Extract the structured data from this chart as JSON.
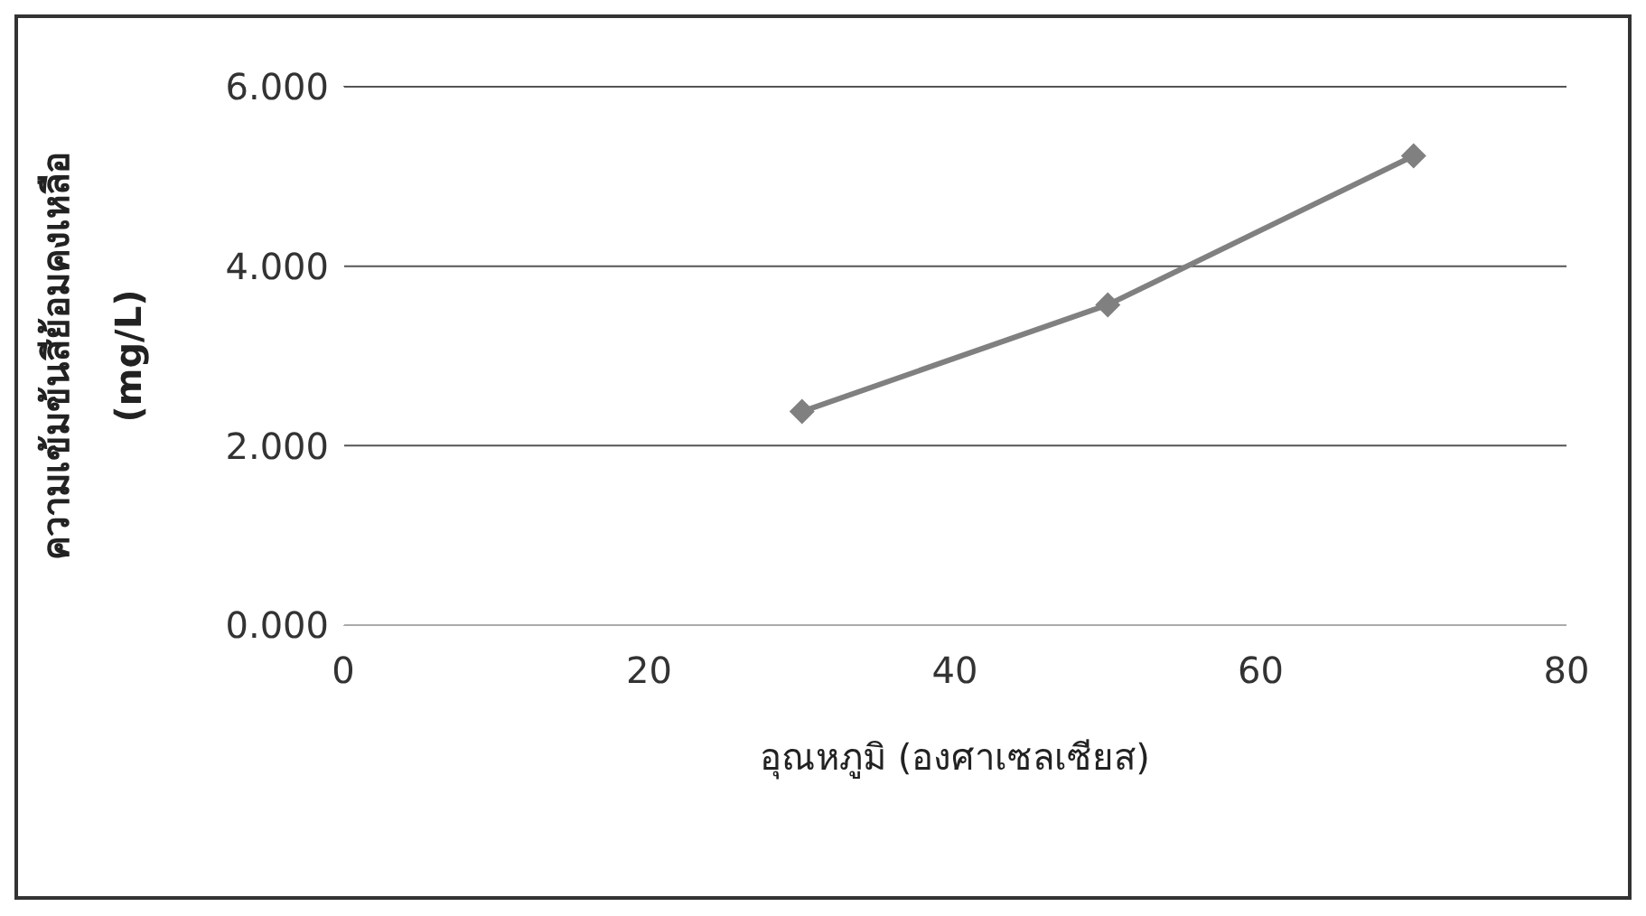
{
  "chart_data": {
    "type": "line",
    "xlabel": "อุณหภูมิ (องศาเซลเซียส)",
    "ylabel": "ความเข้มข้นสีย้อมคงเหลือ (mg/L)",
    "x": [
      30,
      50,
      70
    ],
    "series": [
      {
        "color": "#808080",
        "values": [
          2.38,
          3.57,
          5.23
        ]
      }
    ],
    "xlim": [
      0,
      80
    ],
    "xticks": [
      0,
      20,
      40,
      60,
      80
    ],
    "ylim": [
      0,
      6
    ],
    "yticks": [
      {
        "value": 0,
        "label": "0.000"
      },
      {
        "value": 2,
        "label": "2.000"
      },
      {
        "value": 4,
        "label": "4.000"
      },
      {
        "value": 6,
        "label": "6.000"
      }
    ],
    "grid": "y",
    "marker": "diamond",
    "line_style": "solid",
    "legend": false
  }
}
